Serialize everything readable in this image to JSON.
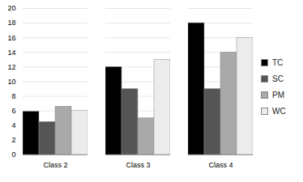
{
  "chart_data": {
    "type": "bar",
    "categories": [
      "Class 2",
      "Class 3",
      "Class 4"
    ],
    "series": [
      {
        "name": "TC",
        "color": "#000000",
        "values": [
          5.9,
          12,
          18
        ]
      },
      {
        "name": "SC",
        "color": "#555555",
        "values": [
          4.5,
          9,
          9
        ]
      },
      {
        "name": "PM",
        "color": "#a9a9a9",
        "values": [
          6.6,
          5,
          14
        ]
      },
      {
        "name": "WC",
        "color": "#ececec",
        "values": [
          6.0,
          13,
          16
        ]
      }
    ],
    "ylim": [
      0,
      20
    ],
    "yticks": [
      0,
      2,
      4,
      6,
      8,
      10,
      12,
      14,
      16,
      18,
      20
    ],
    "grid": true,
    "legend": "right"
  }
}
